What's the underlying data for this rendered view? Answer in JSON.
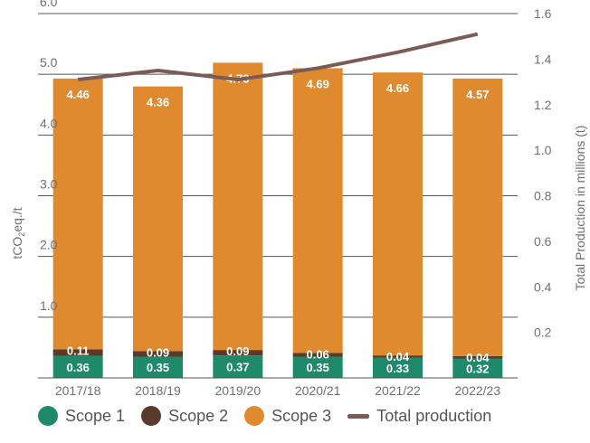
{
  "chart_data": {
    "type": "bar",
    "stacked": true,
    "categories": [
      "2017/18",
      "2018/19",
      "2019/20",
      "2020/21",
      "2021/22",
      "2022/23"
    ],
    "series": [
      {
        "name": "Scope 1",
        "values": [
          0.36,
          0.35,
          0.37,
          0.35,
          0.33,
          0.32
        ],
        "color": "#1f8a6a",
        "axis": "left"
      },
      {
        "name": "Scope 2",
        "values": [
          0.11,
          0.09,
          0.09,
          0.06,
          0.04,
          0.04
        ],
        "color": "#5a3a2a",
        "axis": "left"
      },
      {
        "name": "Scope 3",
        "values": [
          4.46,
          4.36,
          4.73,
          4.69,
          4.66,
          4.57
        ],
        "color": "#e08a30",
        "axis": "left"
      },
      {
        "name": "Total production",
        "type": "line",
        "values": [
          1.31,
          1.35,
          1.31,
          1.36,
          1.43,
          1.51
        ],
        "color": "#7a5b55",
        "axis": "right"
      }
    ],
    "ylabel": "tCO₂eq./t",
    "ylabel_main": "tCO",
    "ylabel_sub": "2",
    "ylabel_tail": "eq./t",
    "ylabel_right": "Total Production in millions (t)",
    "ylim": [
      0,
      6.0
    ],
    "ylim_right": [
      0,
      1.6
    ],
    "yticks_left": [
      "1.0",
      "2.0",
      "3.0",
      "4.0",
      "5.0",
      "6.0"
    ],
    "yticks_right": [
      "0.2",
      "0.4",
      "0.6",
      "0.8",
      "1.0",
      "1.2",
      "1.4",
      "1.6"
    ],
    "grid": true,
    "legend_position": "bottom"
  },
  "legend": {
    "scope1": "Scope 1",
    "scope2": "Scope 2",
    "scope3": "Scope 3",
    "total": "Total production"
  }
}
